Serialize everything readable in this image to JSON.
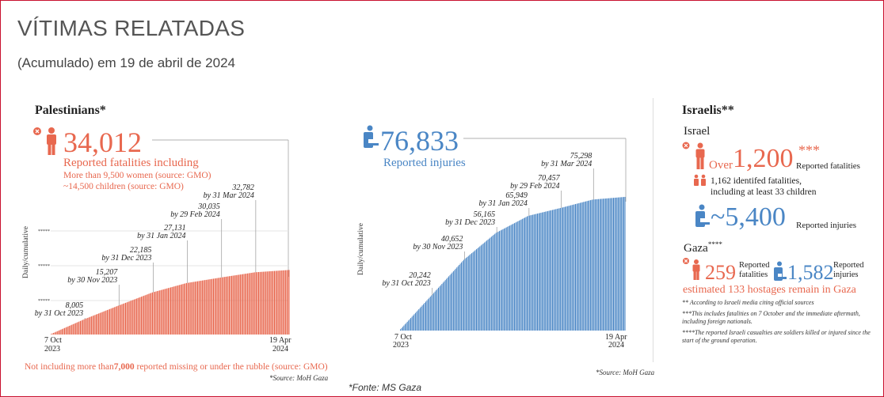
{
  "header": {
    "title": "VÍTIMAS RELATADAS",
    "subtitle": "(Acumulado) em 19 de abril de 2024"
  },
  "palestinians": {
    "heading": "Palestinians*",
    "fatalities": "34,012",
    "fatalities_label": "Reported fatalities including",
    "women": "More than 9,500 women (source: GMO)",
    "children": "~14,500 children (source: GMO)",
    "footnote_pre": "Not including more than",
    "footnote_num": "7,000",
    "footnote_post": " reported missing or under the rubble (source: GMO)",
    "source": "*Source: MoH Gaza",
    "yaxis_label": "Daily/cumulative",
    "start_label_1": "7 Oct",
    "start_label_2": "2023",
    "end_label_1": "19 Apr",
    "end_label_2": "2024",
    "tick_labels": [
      "*****",
      "*****",
      "*****"
    ]
  },
  "injuries": {
    "count": "76,833",
    "label": "Reported injuries",
    "source": "*Source: MoH Gaza",
    "yaxis_label": "Daily/cumulative",
    "start_label_1": "7 Oct",
    "start_label_2": "2023",
    "end_label_1": "19 Apr",
    "end_label_2": "2024"
  },
  "israelis": {
    "heading": "Israelis**",
    "israel_label": "Israel",
    "over": "Over",
    "fatalities": "1,200",
    "fatalities_mark": "***",
    "fatalities_label": "Reported fatalities",
    "identified_1": "1,162 identifed fatalities,",
    "identified_2": "including at least 33 children",
    "injuries": "~5,400",
    "injuries_label": "Reported injuries",
    "gaza_label": "Gaza",
    "gaza_mark": "****",
    "gaza_fatalities": "259",
    "gaza_fatalities_label_1": "Reported",
    "gaza_fatalities_label_2": "fatalities",
    "gaza_injuries": "1,582",
    "gaza_injuries_label_1": "Reported",
    "gaza_injuries_label_2": "injuries",
    "hostages": "estimated 133 hostages remain in Gaza",
    "note1": "** According to Israeli media citing official sources",
    "note2": "***This includes fatalities on 7 October and the immediate aftermath, including foreign nationals.",
    "note3": "****The reported Israeli casualties are soldiers killed or injured since the start of the ground operation."
  },
  "footer": {
    "source": "*Fonte: MS Gaza"
  },
  "colors": {
    "red": "#e8684f",
    "blue": "#4a86c5",
    "frame": "#c8102e"
  },
  "icons": [
    "close-icon",
    "person-icon",
    "injured-person-icon",
    "children-icon"
  ],
  "chart_data": [
    {
      "type": "bar",
      "title": "",
      "series": [
        {
          "name": "Reported fatalities",
          "color": "#e8684f"
        }
      ],
      "x": [
        "7 Oct 2023",
        "31 Oct 2023",
        "30 Nov 2023",
        "31 Dec 2023",
        "31 Jan 2024",
        "29 Feb 2024",
        "31 Mar 2024",
        "19 Apr 2024"
      ],
      "values": [
        0,
        8005,
        15207,
        22185,
        27131,
        30035,
        32782,
        34012
      ],
      "annotations": [
        {
          "value": "8,005",
          "date": "by 31 Oct 2023"
        },
        {
          "value": "15,207",
          "date": "by 30 Nov 2023"
        },
        {
          "value": "22,185",
          "date": "by 31 Dec 2023"
        },
        {
          "value": "27,131",
          "date": "by 31 Jan 2024"
        },
        {
          "value": "30,035",
          "date": "by 29 Feb 2024"
        },
        {
          "value": "32,782",
          "date": "by 31 Mar 2024"
        }
      ],
      "ylabel": "Daily/cumulative",
      "ylim": [
        0,
        100000
      ],
      "bars": 196
    },
    {
      "type": "bar",
      "title": "",
      "series": [
        {
          "name": "Reported injuries",
          "color": "#4a86c5"
        }
      ],
      "x": [
        "7 Oct 2023",
        "31 Oct 2023",
        "30 Nov 2023",
        "31 Dec 2023",
        "31 Jan 2024",
        "29 Feb 2024",
        "31 Mar 2024",
        "19 Apr 2024"
      ],
      "values": [
        0,
        20242,
        40652,
        56165,
        65949,
        70457,
        75298,
        76833
      ],
      "annotations": [
        {
          "value": "20,242",
          "date": "by 31 Oct 2023"
        },
        {
          "value": "40,652",
          "date": "by 30 Nov 2023"
        },
        {
          "value": "56,165",
          "date": "by 31 Dec 2023"
        },
        {
          "value": "65,949",
          "date": "by 31 Jan 2024"
        },
        {
          "value": "70,457",
          "date": "by 29 Feb 2024"
        },
        {
          "value": "75,298",
          "date": "by 31 Mar 2024"
        }
      ],
      "ylabel": "Daily/cumulative",
      "ylim": [
        0,
        100000
      ],
      "bars": 196
    }
  ]
}
